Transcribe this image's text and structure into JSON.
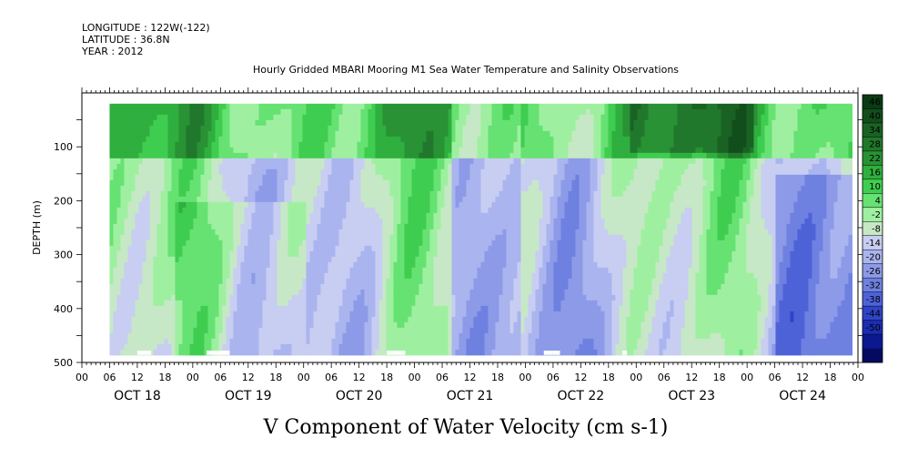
{
  "header": {
    "longitude": "LONGITUDE : 122W(-122)",
    "latitude": "LATITUDE : 36.8N",
    "year": "YEAR : 2012",
    "title": "Hourly Gridded MBARI Mooring M1 Sea Water Temperature and Salinity Observations"
  },
  "chart_data": {
    "type": "heatmap",
    "title": "V Component of Water Velocity (cm s-1)",
    "xlabel": "",
    "ylabel": "DEPTH (m)",
    "x_axis": {
      "range_hours": [
        0,
        168
      ],
      "hour_ticks": [
        "00",
        "06",
        "12",
        "18",
        "00",
        "06",
        "12",
        "18",
        "00",
        "06",
        "12",
        "18",
        "00",
        "06",
        "12",
        "18",
        "00",
        "06",
        "12",
        "18",
        "00",
        "06",
        "12",
        "18",
        "00",
        "06",
        "12",
        "18",
        "00"
      ],
      "day_labels": [
        "OCT 18",
        "OCT 19",
        "OCT 20",
        "OCT 21",
        "OCT 22",
        "OCT 23",
        "OCT 24"
      ]
    },
    "y_axis": {
      "range": [
        0,
        500
      ],
      "ticks": [
        "100",
        "200",
        "300",
        "400",
        "500"
      ],
      "inverted": true
    },
    "data_extent": {
      "depth_min": 20,
      "depth_max": 485,
      "hour_start": 6,
      "hour_end": 166
    },
    "colorbar": {
      "levels": [
        "46",
        "40",
        "34",
        "28",
        "22",
        "16",
        "10",
        "4",
        "-2",
        "-8",
        "-14",
        "-20",
        "-26",
        "-32",
        "-38",
        "-44",
        "-50"
      ],
      "colors": [
        "#0a3a14",
        "#124e1c",
        "#1a6224",
        "#21782c",
        "#289234",
        "#2faf3e",
        "#3fcd50",
        "#66e272",
        "#9ef0a0",
        "#c6e8c6",
        "#c8cdf2",
        "#aab4ee",
        "#8c9ae8",
        "#6e80e0",
        "#4e62d8",
        "#2e44c8",
        "#1a2cb0",
        "#0c1890",
        "#050a60"
      ]
    }
  }
}
